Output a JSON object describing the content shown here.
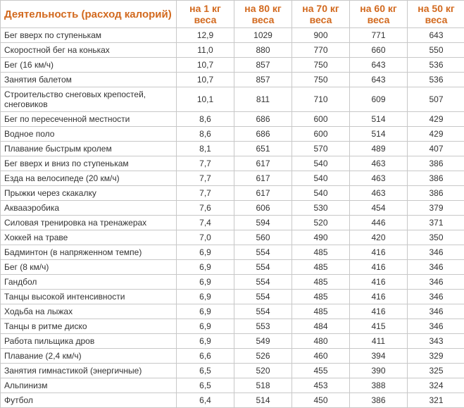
{
  "table": {
    "header_color": "#d2691e",
    "border_color": "#c8c8c8",
    "text_color": "#333333",
    "columns": [
      "Деятельность (расход калорий)",
      "на 1 кг веса",
      "на 80 кг веса",
      "на 70 кг веса",
      "на 60 кг веса",
      "на 50 кг веса"
    ],
    "rows": [
      {
        "activity": "Бег вверх по ступенькам",
        "v": [
          "12,9",
          "1029",
          "900",
          "771",
          "643"
        ]
      },
      {
        "activity": "Скоростной бег на коньках",
        "v": [
          "11,0",
          "880",
          "770",
          "660",
          "550"
        ]
      },
      {
        "activity": "Бег (16 км/ч)",
        "v": [
          "10,7",
          "857",
          "750",
          "643",
          "536"
        ]
      },
      {
        "activity": "Занятия балетом",
        "v": [
          "10,7",
          "857",
          "750",
          "643",
          "536"
        ]
      },
      {
        "activity": "Строительство снеговых крепостей, снеговиков",
        "v": [
          "10,1",
          "811",
          "710",
          "609",
          "507"
        ]
      },
      {
        "activity": "Бег по пересеченной местности",
        "v": [
          "8,6",
          "686",
          "600",
          "514",
          "429"
        ]
      },
      {
        "activity": "Водное поло",
        "v": [
          "8,6",
          "686",
          "600",
          "514",
          "429"
        ]
      },
      {
        "activity": "Плавание быстрым кролем",
        "v": [
          "8,1",
          "651",
          "570",
          "489",
          "407"
        ]
      },
      {
        "activity": "Бег вверх и вниз по ступенькам",
        "v": [
          "7,7",
          "617",
          "540",
          "463",
          "386"
        ]
      },
      {
        "activity": "Езда на велосипеде (20 км/ч)",
        "v": [
          "7,7",
          "617",
          "540",
          "463",
          "386"
        ]
      },
      {
        "activity": "Прыжки через скакалку",
        "v": [
          "7,7",
          "617",
          "540",
          "463",
          "386"
        ]
      },
      {
        "activity": "Аквааэробика",
        "v": [
          "7,6",
          "606",
          "530",
          "454",
          "379"
        ]
      },
      {
        "activity": "Силовая тренировка на тренажерах",
        "v": [
          "7,4",
          "594",
          "520",
          "446",
          "371"
        ]
      },
      {
        "activity": "Хоккей на траве",
        "v": [
          "7,0",
          "560",
          "490",
          "420",
          "350"
        ]
      },
      {
        "activity": "Бадминтон (в напряженном темпе)",
        "v": [
          "6,9",
          "554",
          "485",
          "416",
          "346"
        ]
      },
      {
        "activity": "Бег (8 км/ч)",
        "v": [
          "6,9",
          "554",
          "485",
          "416",
          "346"
        ]
      },
      {
        "activity": "Гандбол",
        "v": [
          "6,9",
          "554",
          "485",
          "416",
          "346"
        ]
      },
      {
        "activity": "Танцы высокой интенсивности",
        "v": [
          "6,9",
          "554",
          "485",
          "416",
          "346"
        ]
      },
      {
        "activity": "Ходьба на лыжах",
        "v": [
          "6,9",
          "554",
          "485",
          "416",
          "346"
        ]
      },
      {
        "activity": "Танцы в ритме диско",
        "v": [
          "6,9",
          "553",
          "484",
          "415",
          "346"
        ]
      },
      {
        "activity": "Работа пильщика дров",
        "v": [
          "6,9",
          "549",
          "480",
          "411",
          "343"
        ]
      },
      {
        "activity": "Плавание (2,4 км/ч)",
        "v": [
          "6,6",
          "526",
          "460",
          "394",
          "329"
        ]
      },
      {
        "activity": "Занятия гимнастикой (энергичные)",
        "v": [
          "6,5",
          "520",
          "455",
          "390",
          "325"
        ]
      },
      {
        "activity": "Альпинизм",
        "v": [
          "6,5",
          "518",
          "453",
          "388",
          "324"
        ]
      },
      {
        "activity": "Футбол",
        "v": [
          "6,4",
          "514",
          "450",
          "386",
          "321"
        ]
      }
    ]
  }
}
